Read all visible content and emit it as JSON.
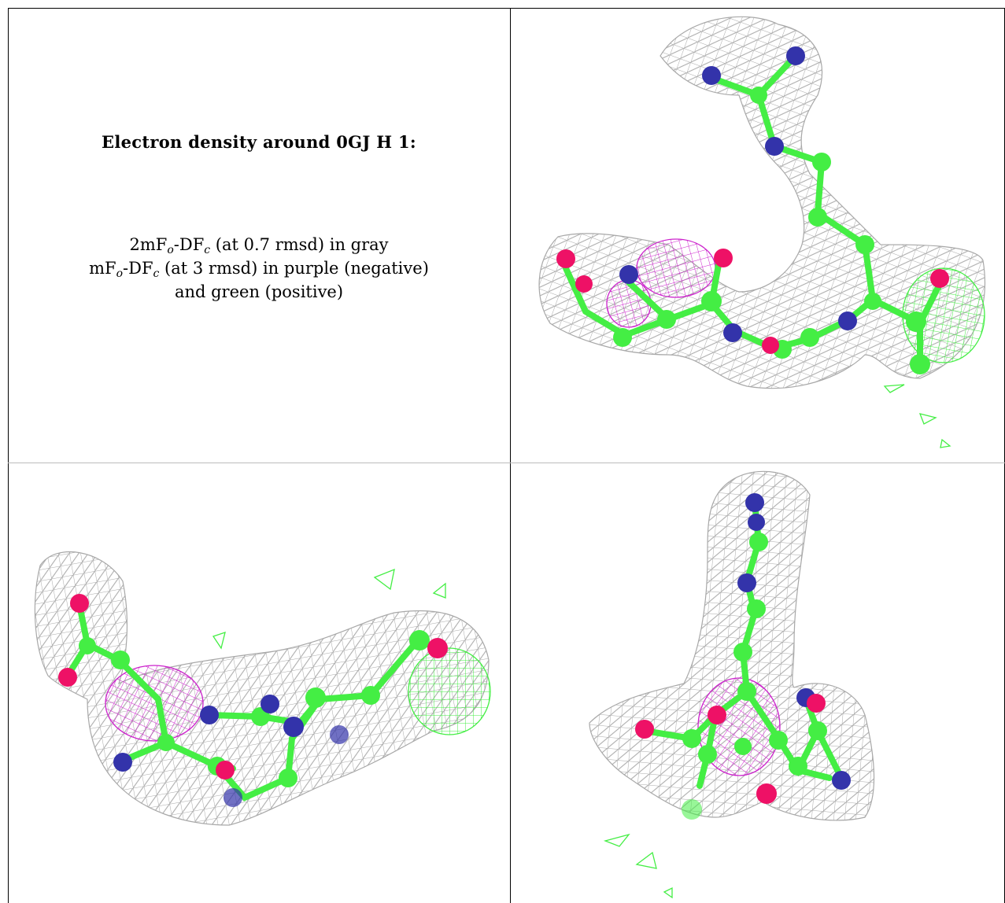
{
  "caption": {
    "title": "Electron density around 0GJ H 1:",
    "line1_prefix": "2mF",
    "line1_sub1": "o",
    "line1_mid": "-DF",
    "line1_sub2": "c",
    "line1_suffix": " (at 0.7 rmsd) in gray",
    "line2_prefix": "mF",
    "line2_sub1": "o",
    "line2_mid": "-DF",
    "line2_sub2": "c",
    "line2_suffix": " (at 3 rmsd) in purple (negative)",
    "line3": "and green (positive)"
  },
  "colors": {
    "mesh_2fofc": "#a8a8a8",
    "mesh_negative": "#cc22cc",
    "mesh_positive": "#44ee44",
    "carbon": "#44ee44",
    "nitrogen": "#3333aa",
    "oxygen": "#ee1166"
  },
  "views": [
    {
      "name": "view-1",
      "description_icon": "molecule-density-icon"
    },
    {
      "name": "view-2",
      "description_icon": "molecule-density-icon"
    },
    {
      "name": "view-3",
      "description_icon": "molecule-density-icon"
    }
  ]
}
